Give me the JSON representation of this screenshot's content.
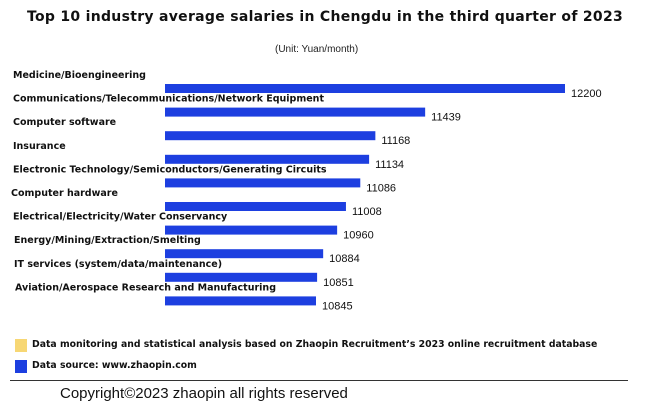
{
  "chart_data": {
    "type": "bar",
    "orientation": "horizontal",
    "title": "Top 10 industry average salaries in Chengdu in the third quarter of 2023",
    "subtitle": "(Unit: Yuan/month)",
    "categories": [
      "Medicine/Bioengineering",
      "Communications/Telecommunications/Network Equipment",
      "Computer software",
      "Insurance",
      "Electronic Technology/Semiconductors/Generating Circuits",
      "Computer hardware",
      "Electrical/Electricity/Water Conservancy",
      "Energy/Mining/Extraction/Smelting",
      "IT services (system/data/maintenance)",
      "Aviation/Aerospace Research and Manufacturing"
    ],
    "values": [
      12200,
      11439,
      11168,
      11134,
      11086,
      11008,
      10960,
      10884,
      10851,
      10845
    ],
    "bar_color": "#1d3fe0",
    "grid": false
  },
  "notes": [
    {
      "color": "#f7d774",
      "text": "Data monitoring and statistical analysis based on Zhaopin Recruitment’s 2023 online recruitment database"
    },
    {
      "color": "#1d3fe0",
      "text": "Data source: www.zhaopin.com"
    }
  ],
  "copyright": "Copyright©2023 zhaopin all rights reserved"
}
